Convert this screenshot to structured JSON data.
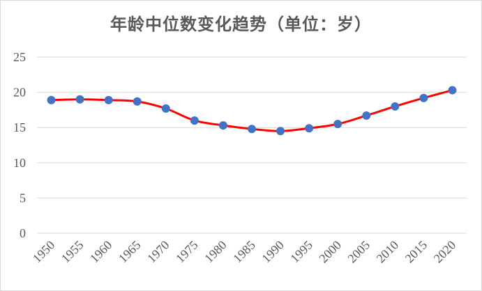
{
  "chart_data": {
    "type": "line",
    "title": "年龄中位数变化趋势（单位：岁）",
    "xlabel": "",
    "ylabel": "",
    "x": [
      "1950",
      "1955",
      "1960",
      "1965",
      "1970",
      "1975",
      "1980",
      "1985",
      "1990",
      "1995",
      "2000",
      "2005",
      "2010",
      "2015",
      "2020"
    ],
    "series": [
      {
        "values": [
          18.9,
          19.0,
          18.9,
          18.7,
          17.7,
          16.0,
          15.3,
          14.8,
          14.5,
          14.9,
          15.5,
          16.7,
          18.0,
          19.2,
          20.3
        ],
        "line_color": "#ff0000",
        "marker_color": "#4472c4"
      }
    ],
    "ylim": [
      0,
      25
    ],
    "yticks": [
      "0",
      "5",
      "10",
      "15",
      "20",
      "25"
    ],
    "grid": true,
    "legend": "none",
    "smooth": true
  }
}
